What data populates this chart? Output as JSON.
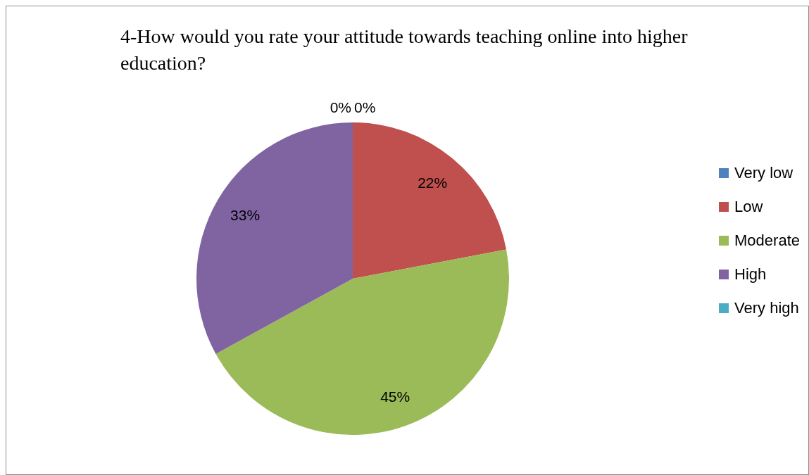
{
  "chart_data": {
    "type": "pie",
    "title": "4-How would you rate your attitude towards teaching online into higher education?",
    "categories": [
      "Very low",
      "Low",
      "Moderate",
      "High",
      "Very high"
    ],
    "values": [
      0,
      22,
      45,
      33,
      0
    ],
    "colors": [
      "#4f81bd",
      "#c0504d",
      "#9bbb59",
      "#8064a2",
      "#4bacc6"
    ],
    "value_labels": [
      "0%",
      "22%",
      "45%",
      "33%",
      "0%"
    ],
    "legend": "right"
  }
}
